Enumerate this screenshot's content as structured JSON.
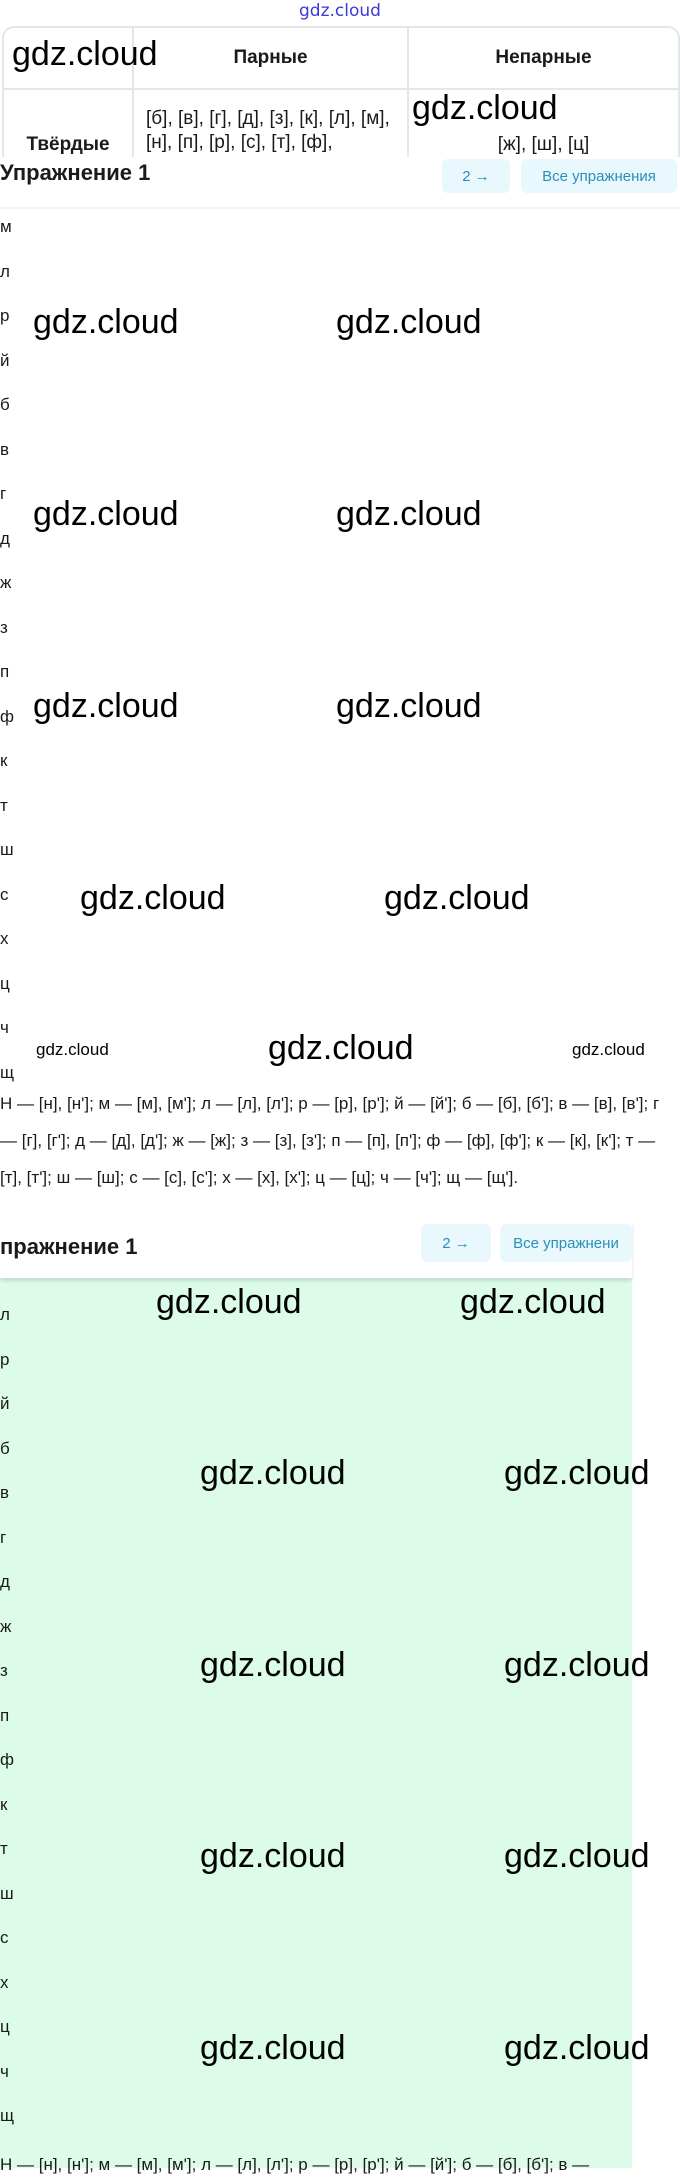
{
  "watermark": "gdz.cloud",
  "table": {
    "headers": [
      "",
      "Парные",
      "Непарные"
    ],
    "rows": [
      {
        "label": "Твёрдые",
        "paired": "[б], [в], [г], [д], [з], [к], [л], [м], [н], [п], [р], [с], [т], [ф],",
        "unpaired": "[ж], [ш], [ц]"
      }
    ]
  },
  "section1": {
    "title": "Упражнение 1",
    "next_button": "2 →",
    "all_button": "Все упражнения",
    "letters": [
      "м",
      "л",
      "р",
      "й",
      "б",
      "в",
      "г",
      "д",
      "ж",
      "з",
      "п",
      "ф",
      "к",
      "т",
      "ш",
      "с",
      "х",
      "ц",
      "ч",
      "щ"
    ],
    "answer": "Н — [н], [н']; м — [м], [м']; л — [л], [л']; р — [р], [р']; й — [й']; б — [б], [б']; в — [в], [в']; г — [г], [г']; д — [д], [д']; ж — [ж]; з — [з], [з']; п — [п], [п']; ф — [ф], [ф']; к — [к], [к']; т — [т], [т']; ш — [ш]; с — [с], [с']; х — [х], [х']; ц — [ц]; ч — [ч']; щ — [щ']."
  },
  "section2": {
    "title": "пражнение 1",
    "next_button": "2 →",
    "all_button": "Все упражнени",
    "letters": [
      "л",
      "р",
      "й",
      "б",
      "в",
      "г",
      "д",
      "ж",
      "з",
      "п",
      "ф",
      "к",
      "т",
      "ш",
      "с",
      "х",
      "ц",
      "ч",
      "щ"
    ],
    "answer": "Н — [н], [н']; м — [м], [м']; л — [л], [л']; р — [р], [р']; й — [й']; б — [б], [б']; в —"
  },
  "colors": {
    "accent": "#2b8fb8",
    "button_bg": "#e8f8fd",
    "answer_bg": "#dcfce9",
    "border": "#e3e6ea"
  }
}
